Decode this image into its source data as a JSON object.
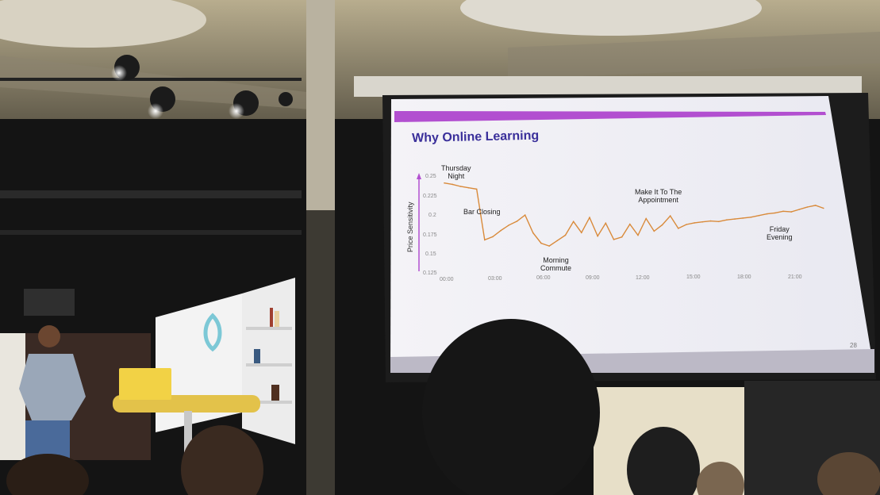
{
  "slide": {
    "title": "Why Online Learning",
    "page_number": "28",
    "ylabel": "Price Sensitivity",
    "annotations": {
      "thursday": "Thursday\nNight",
      "bar_closing": "Bar Closing",
      "morning": "Morning\nCommute",
      "appointment": "Make It To The\nAppointment",
      "friday": "Friday\nEvening"
    },
    "accent_color": "#b24fd0",
    "line_color": "#d98a3a"
  },
  "chart_data": {
    "type": "line",
    "xlabel": "",
    "ylabel": "Price Sensitivity",
    "x_ticks": [
      "00:00",
      "03:00",
      "06:00",
      "09:00",
      "12:00",
      "15:00",
      "18:00",
      "21:00"
    ],
    "y_ticks": [
      "0.125",
      "0.15",
      "0.175",
      "0.2",
      "0.225",
      "0.25"
    ],
    "ylim": [
      0.125,
      0.25
    ],
    "grid": false,
    "series": [
      {
        "x_hours": [
          0,
          0.5,
          1,
          1.5,
          2,
          2.5,
          3,
          3.5,
          4,
          4.5,
          5,
          5.5,
          6,
          6.5,
          7,
          7.5,
          8,
          8.5,
          9,
          9.5,
          10,
          10.5,
          11,
          11.5,
          12,
          12.5,
          13,
          13.5,
          14,
          14.5,
          15,
          15.5,
          16,
          16.5,
          17,
          17.5,
          18,
          18.5,
          19,
          19.5,
          20,
          20.5,
          21,
          21.5,
          22,
          22.5,
          23,
          23.5
        ],
        "values": [
          0.245,
          0.243,
          0.24,
          0.238,
          0.236,
          0.168,
          0.172,
          0.18,
          0.187,
          0.192,
          0.2,
          0.176,
          0.162,
          0.158,
          0.165,
          0.172,
          0.19,
          0.175,
          0.195,
          0.17,
          0.187,
          0.165,
          0.168,
          0.185,
          0.17,
          0.192,
          0.175,
          0.183,
          0.195,
          0.178,
          0.183,
          0.185,
          0.186,
          0.187,
          0.186,
          0.188,
          0.189,
          0.19,
          0.191,
          0.193,
          0.195,
          0.196,
          0.198,
          0.197,
          0.2,
          0.203,
          0.205,
          0.201
        ]
      }
    ]
  }
}
